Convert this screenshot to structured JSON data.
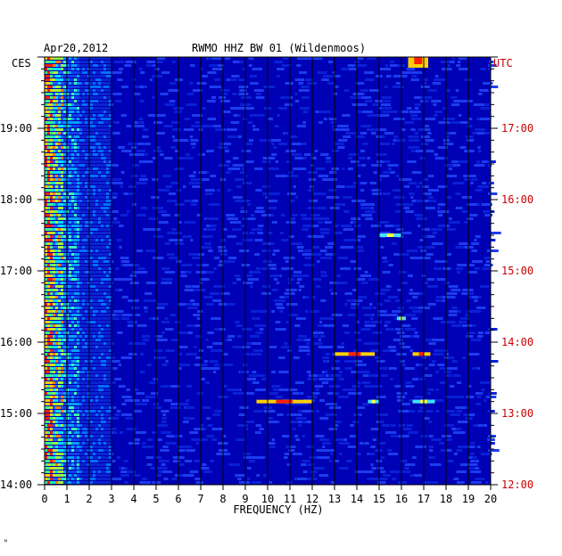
{
  "header": {
    "date": "Apr20,2012",
    "station": "RWMO HHZ BW 01 (Wildenmoos)"
  },
  "timezones": {
    "left": "CES",
    "right": "UTC"
  },
  "colors": {
    "background": "#0000b4",
    "left_label": "#000000",
    "right_label": "#cc0000",
    "grid_line": "#000000"
  },
  "footer_mark": "ᴹ",
  "chart_data": {
    "type": "heatmap",
    "title": "RWMO HHZ BW 01 (Wildenmoos)",
    "xlabel": "FREQUENCY (HZ)",
    "x_range": [
      0,
      20
    ],
    "x_ticks": [
      "0",
      "1",
      "2",
      "3",
      "4",
      "5",
      "6",
      "7",
      "8",
      "9",
      "10",
      "11",
      "12",
      "13",
      "14",
      "15",
      "16",
      "17",
      "18",
      "19",
      "20"
    ],
    "y_left_ticks": [
      "19:00",
      "18:00",
      "17:00",
      "16:00",
      "15:00",
      "14:00"
    ],
    "y_right_ticks": [
      "17:00",
      "16:00",
      "15:00",
      "14:00",
      "13:00",
      "12:00"
    ],
    "time_range_local": [
      "14:00",
      "20:00"
    ],
    "utc_offset_hours": 2,
    "features": [
      {
        "kind": "low-frequency band",
        "freq": [
          0.1,
          0.8
        ],
        "intensity": "high"
      },
      {
        "kind": "spectral line",
        "time_local": "15:10",
        "freq": [
          9.5,
          12
        ],
        "intensity": "high"
      },
      {
        "kind": "spectral line",
        "time_local": "15:10",
        "freq": [
          14.5,
          15
        ],
        "intensity": "medium"
      },
      {
        "kind": "spectral line",
        "time_local": "15:10",
        "freq": [
          16.5,
          17.5
        ],
        "intensity": "medium"
      },
      {
        "kind": "spectral line",
        "time_local": "15:50",
        "freq": [
          13,
          14.8
        ],
        "intensity": "high"
      },
      {
        "kind": "spectral line",
        "time_local": "15:50",
        "freq": [
          16.5,
          17.3
        ],
        "intensity": "high"
      },
      {
        "kind": "spectral line",
        "time_local": "16:20",
        "freq": [
          15.8,
          16.2
        ],
        "intensity": "medium"
      },
      {
        "kind": "spectral line",
        "time_local": "17:30",
        "freq": [
          15,
          16
        ],
        "intensity": "medium"
      },
      {
        "kind": "hot spot",
        "time_local": "20:00",
        "freq": [
          16.3,
          17.2
        ],
        "intensity": "high"
      }
    ]
  }
}
